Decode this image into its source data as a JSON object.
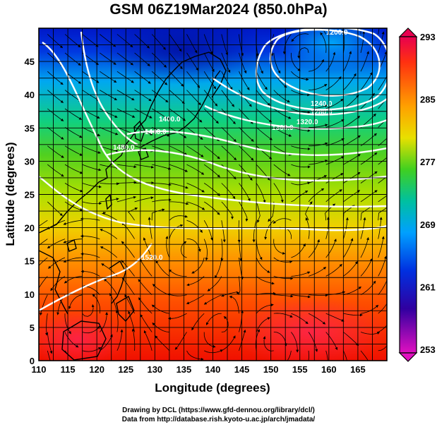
{
  "title": "GSM 06Z19Mar2024 (850.0hPa)",
  "credits": {
    "line1": "Drawing by DCL (https://www.gfd-dennou.org/library/dcl/)",
    "line2": "Data from http://database.rish.kyoto-u.ac.jp/arch/jmadata/"
  },
  "axes": {
    "xlabel": "Longitude (degrees)",
    "ylabel": "Latitude  (degrees)",
    "xlim": [
      110,
      170
    ],
    "ylim": [
      0,
      50
    ],
    "xticks": [
      "110",
      "115",
      "120",
      "125",
      "130",
      "135",
      "140",
      "145",
      "150",
      "155",
      "160",
      "165"
    ],
    "yticks": [
      "0",
      "5",
      "10",
      "15",
      "20",
      "25",
      "30",
      "35",
      "40",
      "45"
    ],
    "grid": true
  },
  "colorbar": {
    "labels": [
      "293",
      "285",
      "277",
      "269",
      "261",
      "253"
    ],
    "colors": [
      "#e80050",
      "#ff4000",
      "#ffa000",
      "#e8e000",
      "#40d020",
      "#00c0a0",
      "#00a0ff",
      "#0030e0",
      "#3000a0",
      "#e010c0"
    ]
  },
  "contours": [
    {
      "label": "1200.0"
    },
    {
      "label": "1240.0"
    },
    {
      "label": "1280.0"
    },
    {
      "label": "1320.0"
    },
    {
      "label": "1360.0"
    },
    {
      "label": "1400.0"
    },
    {
      "label": "1440.0"
    },
    {
      "label": "1480.0"
    },
    {
      "label": "1520.0"
    }
  ]
}
